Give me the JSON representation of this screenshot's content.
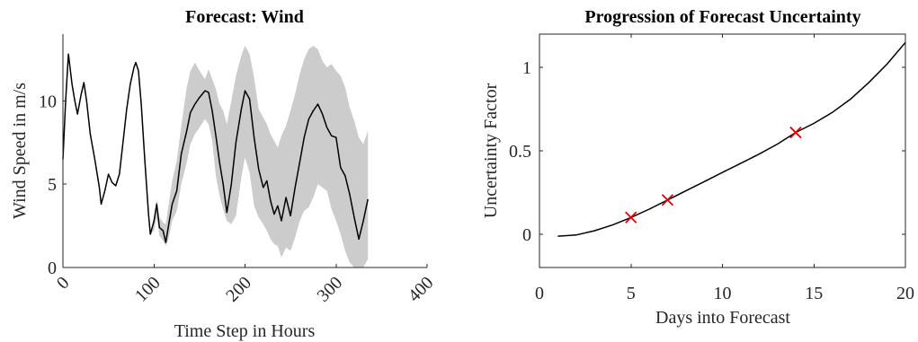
{
  "chart_data": [
    {
      "type": "line",
      "title": "Forecast: Wind",
      "xlabel": "Time Step in Hours",
      "ylabel": "Wind Speed in m/s",
      "xlim": [
        0,
        400
      ],
      "ylim": [
        0,
        14
      ],
      "xticks": [
        0,
        100,
        200,
        300,
        400
      ],
      "yticks": [
        0,
        5,
        10
      ],
      "xtick_labels": [
        "0",
        "100",
        "200",
        "300",
        "400"
      ],
      "ytick_labels": [
        "0",
        "5",
        "10"
      ],
      "xtick_rotation_deg": 45,
      "grid": false,
      "colors": {
        "line": "#000000",
        "band": "#cccccc"
      },
      "series": [
        {
          "x": [
            0,
            3,
            6,
            10,
            13,
            16,
            20,
            23,
            26,
            30,
            35,
            40,
            42,
            46,
            50,
            54,
            58,
            62,
            66,
            70,
            74,
            78,
            80,
            83,
            86,
            90,
            94,
            96,
            100,
            103,
            106,
            110,
            113,
            116,
            120,
            125,
            130,
            136,
            140,
            145,
            150,
            156,
            160,
            164,
            168,
            172,
            176,
            180,
            185,
            190,
            196,
            200,
            205,
            210,
            215,
            220,
            224,
            228,
            232,
            236,
            240,
            245,
            250,
            255,
            260,
            265,
            270,
            275,
            280,
            285,
            290,
            295,
            300,
            305,
            310,
            315,
            320,
            325,
            330,
            335
          ],
          "y": [
            6.5,
            10.0,
            12.8,
            11.0,
            10.0,
            9.2,
            10.4,
            11.1,
            10.0,
            8.0,
            6.5,
            4.8,
            3.8,
            4.6,
            5.6,
            5.1,
            4.9,
            5.6,
            7.5,
            9.5,
            11.0,
            12.0,
            12.3,
            11.8,
            9.8,
            6.4,
            3.2,
            2.0,
            2.8,
            3.8,
            2.4,
            2.2,
            1.5,
            2.5,
            3.8,
            4.6,
            6.8,
            8.2,
            9.3,
            9.8,
            10.2,
            10.6,
            10.5,
            9.4,
            7.9,
            6.3,
            5.0,
            3.3,
            5.0,
            7.5,
            9.5,
            10.6,
            10.1,
            7.8,
            5.9,
            4.8,
            5.2,
            4.0,
            3.2,
            3.7,
            2.8,
            4.2,
            3.1,
            4.8,
            6.3,
            7.8,
            8.9,
            9.4,
            9.8,
            9.2,
            8.4,
            7.9,
            7.8,
            6.0,
            5.5,
            4.4,
            3.0,
            1.7,
            2.8,
            4.1
          ],
          "upper": [
            6.5,
            10.0,
            12.8,
            11.0,
            10.0,
            9.2,
            10.4,
            11.1,
            10.0,
            8.0,
            6.5,
            4.8,
            3.8,
            4.6,
            5.6,
            5.1,
            4.9,
            5.6,
            7.5,
            9.5,
            11.0,
            12.0,
            12.3,
            11.8,
            9.8,
            6.4,
            3.2,
            2.0,
            3.0,
            4.1,
            3.0,
            2.7,
            2.6,
            3.7,
            5.2,
            6.4,
            8.5,
            10.8,
            11.8,
            12.3,
            11.8,
            11.3,
            11.9,
            11.3,
            10.7,
            9.8,
            9.4,
            8.6,
            10.0,
            11.5,
            12.7,
            13.3,
            12.8,
            11.4,
            9.5,
            9.0,
            8.6,
            8.0,
            7.6,
            7.2,
            7.9,
            8.5,
            9.4,
            10.4,
            11.6,
            12.5,
            13.1,
            13.3,
            13.1,
            12.4,
            12.0,
            12.2,
            11.8,
            11.5,
            10.8,
            9.6,
            8.8,
            7.8,
            7.4,
            8.2
          ],
          "lower": [
            6.5,
            10.0,
            12.8,
            11.0,
            10.0,
            9.2,
            10.4,
            11.1,
            10.0,
            8.0,
            6.5,
            4.8,
            3.8,
            4.6,
            5.6,
            5.1,
            4.9,
            5.6,
            7.5,
            9.5,
            11.0,
            12.0,
            12.3,
            11.8,
            9.8,
            6.4,
            3.2,
            2.0,
            2.2,
            3.0,
            1.9,
            1.6,
            1.3,
            1.7,
            2.8,
            3.4,
            5.0,
            6.3,
            7.4,
            8.0,
            8.4,
            8.9,
            8.6,
            7.6,
            5.5,
            4.3,
            3.5,
            2.8,
            2.6,
            3.1,
            5.4,
            6.6,
            5.7,
            3.7,
            3.0,
            2.6,
            2.2,
            1.7,
            1.4,
            1.3,
            0.6,
            1.2,
            1.0,
            1.8,
            2.8,
            3.4,
            3.6,
            4.2,
            5.0,
            4.8,
            4.6,
            3.5,
            2.8,
            2.0,
            1.0,
            0.3,
            0.0,
            0.0,
            0.0,
            0.5
          ]
        }
      ]
    },
    {
      "type": "line",
      "title": "Progression of Forecast Uncertainty",
      "xlabel": "Days into Forecast",
      "ylabel": "Uncertainty Factor",
      "xlim": [
        0,
        20
      ],
      "ylim": [
        -0.2,
        1.2
      ],
      "xticks": [
        0,
        5,
        10,
        15,
        20
      ],
      "yticks": [
        0,
        0.5,
        1
      ],
      "xtick_labels": [
        "0",
        "5",
        "10",
        "15",
        "20"
      ],
      "ytick_labels": [
        "0",
        "0.5",
        "1"
      ],
      "grid": false,
      "colors": {
        "line": "#000000",
        "markers": "#e60000"
      },
      "series": [
        {
          "x": [
            1,
            2,
            3,
            4,
            5,
            6,
            7,
            8,
            9,
            10,
            11,
            12,
            13,
            14,
            15,
            16,
            17,
            18,
            19,
            20
          ],
          "y": [
            -0.012,
            -0.005,
            0.02,
            0.055,
            0.1,
            0.15,
            0.205,
            0.26,
            0.315,
            0.37,
            0.425,
            0.48,
            0.54,
            0.61,
            0.665,
            0.73,
            0.81,
            0.91,
            1.02,
            1.15
          ]
        }
      ],
      "markers": {
        "symbol": "x",
        "x": [
          5,
          7,
          14
        ],
        "y": [
          0.1,
          0.205,
          0.61
        ]
      }
    }
  ]
}
